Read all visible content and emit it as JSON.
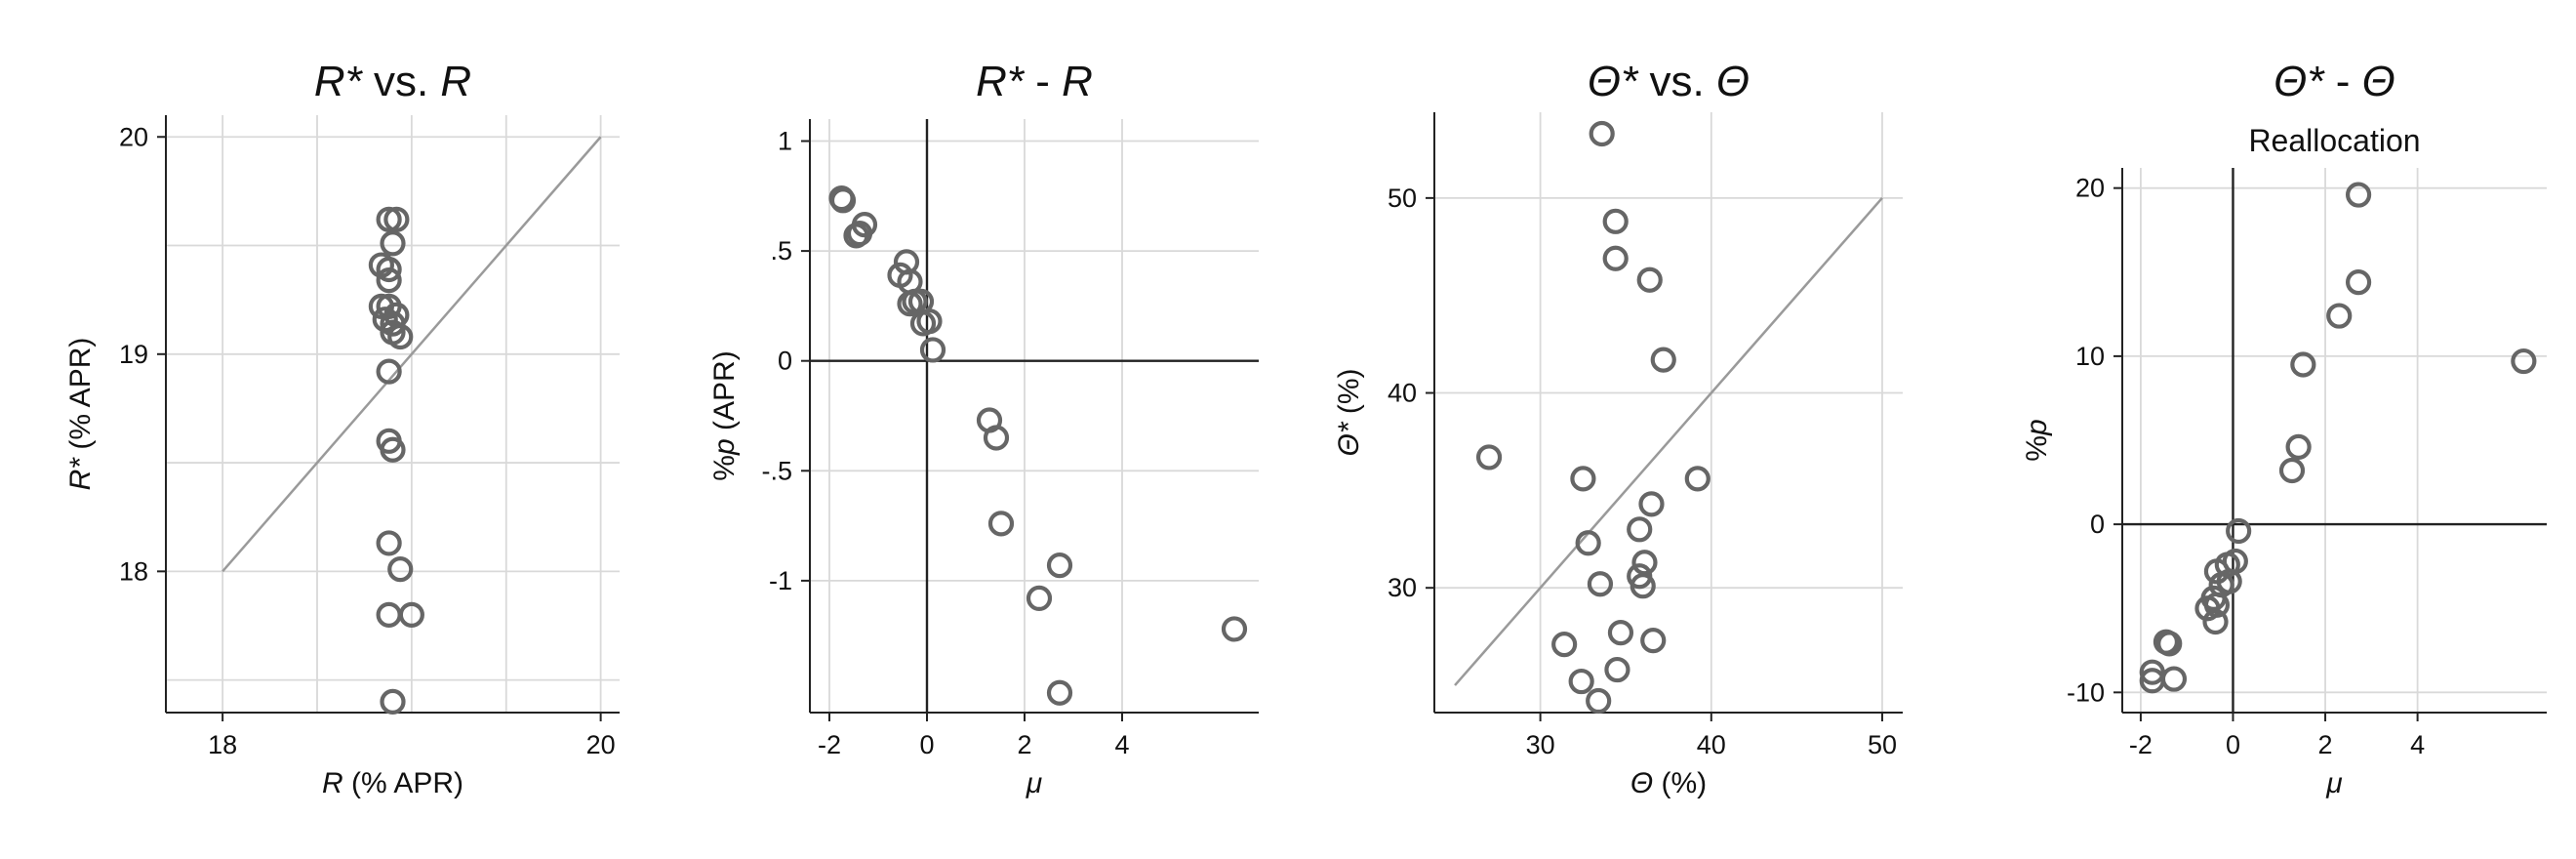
{
  "chart_data": [
    {
      "type": "scatter",
      "title": {
        "parts": [
          [
            "R",
            "i"
          ],
          [
            "*",
            "i"
          ],
          [
            " vs. ",
            "n"
          ],
          [
            "R",
            "i"
          ]
        ]
      },
      "xlabel": {
        "parts": [
          [
            "R",
            "i"
          ],
          [
            " (% APR)",
            "n"
          ]
        ]
      },
      "ylabel": {
        "parts": [
          [
            "R",
            "i"
          ],
          [
            "*",
            "i"
          ],
          [
            " (% APR)",
            "n"
          ]
        ]
      },
      "xlim": [
        17.7,
        20.1
      ],
      "ylim": [
        17.35,
        20.1
      ],
      "x_ticks": [
        {
          "v": 18,
          "label": "18"
        },
        {
          "v": 20,
          "label": "20"
        }
      ],
      "y_ticks": [
        {
          "v": 18,
          "label": "18"
        },
        {
          "v": 19,
          "label": "19"
        },
        {
          "v": 20,
          "label": "20"
        }
      ],
      "x_grid": [
        18,
        18.5,
        19,
        19.5,
        20
      ],
      "y_grid": [
        17.5,
        18,
        18.5,
        19,
        19.5,
        20
      ],
      "zero_lines": false,
      "reference_line": [
        [
          18,
          18
        ],
        [
          20,
          20
        ]
      ],
      "grid": true,
      "points": [
        [
          18.88,
          19.62
        ],
        [
          18.92,
          19.62
        ],
        [
          18.9,
          19.51
        ],
        [
          18.84,
          19.41
        ],
        [
          18.88,
          19.39
        ],
        [
          18.88,
          19.34
        ],
        [
          18.84,
          19.22
        ],
        [
          18.88,
          19.22
        ],
        [
          18.92,
          19.18
        ],
        [
          18.86,
          19.16
        ],
        [
          18.9,
          19.14
        ],
        [
          18.9,
          19.1
        ],
        [
          18.94,
          19.08
        ],
        [
          18.88,
          18.92
        ],
        [
          18.88,
          18.6
        ],
        [
          18.9,
          18.56
        ],
        [
          18.88,
          18.13
        ],
        [
          18.94,
          18.01
        ],
        [
          18.88,
          17.8
        ],
        [
          19.0,
          17.8
        ],
        [
          18.9,
          17.4
        ]
      ]
    },
    {
      "type": "scatter",
      "title": {
        "parts": [
          [
            "R",
            "i"
          ],
          [
            "*",
            "i"
          ],
          [
            " - ",
            "n"
          ],
          [
            "R",
            "i"
          ]
        ]
      },
      "xlabel": {
        "parts": [
          [
            "μ",
            "i"
          ]
        ]
      },
      "ylabel": {
        "parts": [
          [
            "%",
            "n"
          ],
          [
            "p",
            "i"
          ],
          [
            " (APR)",
            "n"
          ]
        ]
      },
      "xlim": [
        -2.4,
        6.8
      ],
      "ylim": [
        -1.6,
        1.1
      ],
      "x_ticks": [
        {
          "v": -2,
          "label": "-2"
        },
        {
          "v": 0,
          "label": "0"
        },
        {
          "v": 2,
          "label": "2"
        },
        {
          "v": 4,
          "label": "4"
        }
      ],
      "y_ticks": [
        {
          "v": 1,
          "label": "1"
        },
        {
          "v": 0.5,
          "label": ".5"
        },
        {
          "v": 0,
          "label": "0"
        },
        {
          "v": -0.5,
          "label": "-.5"
        },
        {
          "v": -1,
          "label": "-1"
        }
      ],
      "x_grid": [
        -2,
        0,
        2,
        4
      ],
      "y_grid": [
        1,
        0.5,
        0,
        -0.5,
        -1
      ],
      "zero_lines": true,
      "reference_line": null,
      "grid": true,
      "points": [
        [
          -1.75,
          0.74
        ],
        [
          -1.72,
          0.73
        ],
        [
          -1.28,
          0.62
        ],
        [
          -1.45,
          0.57
        ],
        [
          -1.38,
          0.58
        ],
        [
          -0.55,
          0.39
        ],
        [
          -0.42,
          0.45
        ],
        [
          -0.35,
          0.36
        ],
        [
          -0.12,
          0.27
        ],
        [
          -0.25,
          0.27
        ],
        [
          -0.35,
          0.26
        ],
        [
          0.05,
          0.18
        ],
        [
          -0.08,
          0.17
        ],
        [
          0.12,
          0.05
        ],
        [
          1.28,
          -0.27
        ],
        [
          1.42,
          -0.35
        ],
        [
          1.52,
          -0.74
        ],
        [
          2.72,
          -0.93
        ],
        [
          2.3,
          -1.08
        ],
        [
          6.3,
          -1.22
        ],
        [
          2.72,
          -1.51
        ]
      ]
    },
    {
      "type": "scatter",
      "title": {
        "parts": [
          [
            "Θ",
            "i"
          ],
          [
            "*",
            "i"
          ],
          [
            " vs. ",
            "n"
          ],
          [
            "Θ",
            "i"
          ]
        ]
      },
      "xlabel": {
        "parts": [
          [
            "Θ",
            "i"
          ],
          [
            " (%)",
            "n"
          ]
        ]
      },
      "ylabel": {
        "parts": [
          [
            "Θ",
            "i"
          ],
          [
            "*",
            "i"
          ],
          [
            " (%)",
            "n"
          ]
        ]
      },
      "xlim": [
        23.8,
        51.2
      ],
      "ylim": [
        23.6,
        54.4
      ],
      "x_ticks": [
        {
          "v": 30,
          "label": "30"
        },
        {
          "v": 40,
          "label": "40"
        },
        {
          "v": 50,
          "label": "50"
        }
      ],
      "y_ticks": [
        {
          "v": 30,
          "label": "30"
        },
        {
          "v": 40,
          "label": "40"
        },
        {
          "v": 50,
          "label": "50"
        }
      ],
      "x_grid": [
        30,
        40,
        50
      ],
      "y_grid": [
        30,
        40,
        50
      ],
      "zero_lines": false,
      "reference_line": [
        [
          25,
          25
        ],
        [
          50,
          50
        ]
      ],
      "grid": true,
      "points": [
        [
          33.6,
          53.3
        ],
        [
          34.4,
          48.8
        ],
        [
          34.4,
          46.9
        ],
        [
          36.4,
          45.8
        ],
        [
          37.2,
          41.7
        ],
        [
          27,
          36.7
        ],
        [
          32.5,
          35.6
        ],
        [
          39.2,
          35.6
        ],
        [
          36.5,
          34.3
        ],
        [
          35.8,
          33.0
        ],
        [
          32.8,
          32.3
        ],
        [
          36.1,
          31.3
        ],
        [
          35.8,
          30.6
        ],
        [
          36.0,
          30.1
        ],
        [
          33.5,
          30.2
        ],
        [
          34.7,
          27.7
        ],
        [
          36.6,
          27.3
        ],
        [
          31.4,
          27.1
        ],
        [
          34.5,
          25.8
        ],
        [
          32.4,
          25.2
        ],
        [
          33.4,
          24.2
        ]
      ]
    },
    {
      "type": "scatter",
      "title": {
        "parts": [
          [
            "Θ",
            "i"
          ],
          [
            "*",
            "i"
          ],
          [
            " - ",
            "n"
          ],
          [
            "Θ",
            "i"
          ]
        ]
      },
      "subtitle": "Reallocation",
      "xlabel": {
        "parts": [
          [
            "μ",
            "i"
          ]
        ]
      },
      "ylabel": {
        "parts": [
          [
            "%",
            "n"
          ],
          [
            "p",
            "i"
          ]
        ]
      },
      "xlim": [
        -2.4,
        6.8
      ],
      "ylim": [
        -11.2,
        21.2
      ],
      "x_ticks": [
        {
          "v": -2,
          "label": "-2"
        },
        {
          "v": 0,
          "label": "0"
        },
        {
          "v": 2,
          "label": "2"
        },
        {
          "v": 4,
          "label": "4"
        }
      ],
      "y_ticks": [
        {
          "v": 20,
          "label": "20"
        },
        {
          "v": 10,
          "label": "10"
        },
        {
          "v": 0,
          "label": "0"
        },
        {
          "v": -10,
          "label": "-10"
        }
      ],
      "x_grid": [
        -2,
        0,
        2,
        4
      ],
      "y_grid": [
        20,
        10,
        0,
        -10
      ],
      "zero_lines": true,
      "reference_line": null,
      "grid": true,
      "points": [
        [
          2.72,
          19.6
        ],
        [
          2.72,
          14.4
        ],
        [
          2.3,
          12.4
        ],
        [
          6.3,
          9.7
        ],
        [
          1.52,
          9.5
        ],
        [
          1.42,
          4.6
        ],
        [
          1.28,
          3.2
        ],
        [
          0.12,
          -0.4
        ],
        [
          0.05,
          -2.2
        ],
        [
          -0.12,
          -2.4
        ],
        [
          -0.35,
          -2.8
        ],
        [
          -0.08,
          -3.4
        ],
        [
          -0.25,
          -3.6
        ],
        [
          -0.42,
          -4.4
        ],
        [
          -0.35,
          -4.8
        ],
        [
          -0.55,
          -5.0
        ],
        [
          -0.38,
          -5.8
        ],
        [
          -1.45,
          -7.0
        ],
        [
          -1.38,
          -7.1
        ],
        [
          -1.75,
          -8.8
        ],
        [
          -1.75,
          -9.3
        ],
        [
          -1.28,
          -9.2
        ]
      ]
    }
  ]
}
